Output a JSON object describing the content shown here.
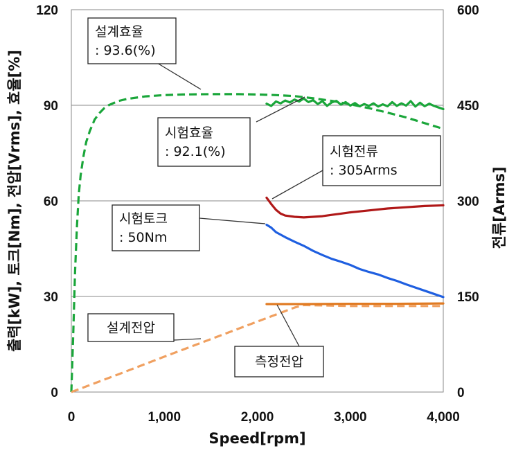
{
  "chart_data": {
    "type": "line",
    "xlabel": "Speed[rpm]",
    "ylabel": "출력[kW], 토크[Nm], 전압[Vrms], 효율[%]",
    "y2label": "전류[Arms]",
    "xlim": [
      0,
      4000
    ],
    "ylim": [
      0,
      120
    ],
    "y2lim": [
      0,
      600
    ],
    "x_ticks": [
      "0",
      "1,000",
      "2,000",
      "3,000",
      "4,000"
    ],
    "y_ticks": [
      "0",
      "30",
      "60",
      "90",
      "120"
    ],
    "y2_ticks": [
      "0",
      "150",
      "300",
      "450",
      "600"
    ],
    "grid": "horizontal",
    "series": [
      {
        "key": "design_eff",
        "axis": "left",
        "color": "#1aa63a",
        "dashed": true,
        "x": [
          0,
          20,
          40,
          60,
          80,
          100,
          130,
          160,
          200,
          250,
          300,
          350,
          400,
          500,
          600,
          800,
          1000,
          1200,
          1500,
          1800,
          2000,
          2200,
          2400,
          2600,
          2800,
          3000,
          3200,
          3400,
          3600,
          3800,
          4000
        ],
        "y": [
          0,
          18,
          38,
          52,
          62,
          68,
          74,
          78.5,
          82,
          85.5,
          87.5,
          89,
          90,
          91.3,
          92,
          92.8,
          93.2,
          93.4,
          93.5,
          93.5,
          93.4,
          93.2,
          92.9,
          92.2,
          91.4,
          90.3,
          89.1,
          87.7,
          86.2,
          84.4,
          82.6
        ]
      },
      {
        "key": "test_eff",
        "axis": "left",
        "color": "#1aa63a",
        "dashed": false,
        "x": [
          2100,
          2150,
          2200,
          2250,
          2300,
          2350,
          2400,
          2450,
          2500,
          2550,
          2600,
          2650,
          2700,
          2750,
          2800,
          2850,
          2900,
          2950,
          3000,
          3050,
          3100,
          3150,
          3200,
          3250,
          3300,
          3350,
          3400,
          3450,
          3500,
          3550,
          3600,
          3650,
          3700,
          3750,
          3800,
          3850,
          3900,
          3950,
          4000
        ],
        "y": [
          90.5,
          89.8,
          91.2,
          90.6,
          91.5,
          90.9,
          91.8,
          91.2,
          92.1,
          91.0,
          91.6,
          90.4,
          91.3,
          89.8,
          90.9,
          91.4,
          90.2,
          91.0,
          89.9,
          90.7,
          89.7,
          90.4,
          89.8,
          90.6,
          89.6,
          90.3,
          89.7,
          91.0,
          89.8,
          90.6,
          89.9,
          91.3,
          89.6,
          90.8,
          89.7,
          90.5,
          89.8,
          89.3,
          88.8
        ]
      },
      {
        "key": "test_current",
        "axis": "right",
        "color": "#b01818",
        "dashed": false,
        "x": [
          2100,
          2150,
          2200,
          2250,
          2300,
          2400,
          2500,
          2600,
          2700,
          2800,
          2900,
          3000,
          3200,
          3400,
          3600,
          3800,
          4000
        ],
        "y": [
          305,
          295,
          286,
          280,
          277,
          275,
          274,
          275,
          276,
          278,
          280,
          282,
          285,
          288,
          290,
          292,
          293
        ]
      },
      {
        "key": "test_torque",
        "axis": "left",
        "color": "#1f5fe0",
        "dashed": false,
        "x": [
          2100,
          2150,
          2200,
          2300,
          2400,
          2500,
          2600,
          2700,
          2800,
          2900,
          3000,
          3100,
          3200,
          3300,
          3400,
          3500,
          3600,
          3700,
          3800,
          3900,
          4000
        ],
        "y": [
          52.5,
          51.6,
          50.2,
          48.6,
          47.2,
          45.9,
          44.3,
          43.0,
          41.8,
          40.9,
          39.9,
          38.6,
          37.7,
          36.9,
          35.8,
          34.9,
          33.8,
          32.8,
          31.8,
          30.8,
          29.8
        ]
      },
      {
        "key": "design_volt",
        "axis": "left",
        "color": "#f0a060",
        "dashed": true,
        "x": [
          0,
          500,
          1000,
          1500,
          2000,
          2400,
          2500,
          3000,
          3500,
          4000
        ],
        "y": [
          0,
          5.5,
          11.1,
          16.6,
          22.1,
          26.5,
          27.3,
          27.0,
          27.0,
          27.0
        ]
      },
      {
        "key": "meas_volt",
        "axis": "left",
        "color": "#e07a22",
        "dashed": false,
        "x": [
          2100,
          2500,
          3000,
          3500,
          4000
        ],
        "y": [
          27.6,
          27.6,
          27.7,
          27.7,
          27.8
        ]
      }
    ],
    "annotations": [
      {
        "lines": [
          "설계효율",
          ": 93.6(%)"
        ],
        "box": true
      },
      {
        "lines": [
          "시험효율",
          ": 92.1(%)"
        ],
        "box": true
      },
      {
        "lines": [
          "시험전류",
          ": 305Arms"
        ],
        "box": true
      },
      {
        "lines": [
          "시험토크",
          ": 50Nm"
        ],
        "box": true
      },
      {
        "lines": [
          "설계전압"
        ],
        "box": true
      },
      {
        "lines": [
          "측정전압"
        ],
        "box": true
      }
    ]
  }
}
